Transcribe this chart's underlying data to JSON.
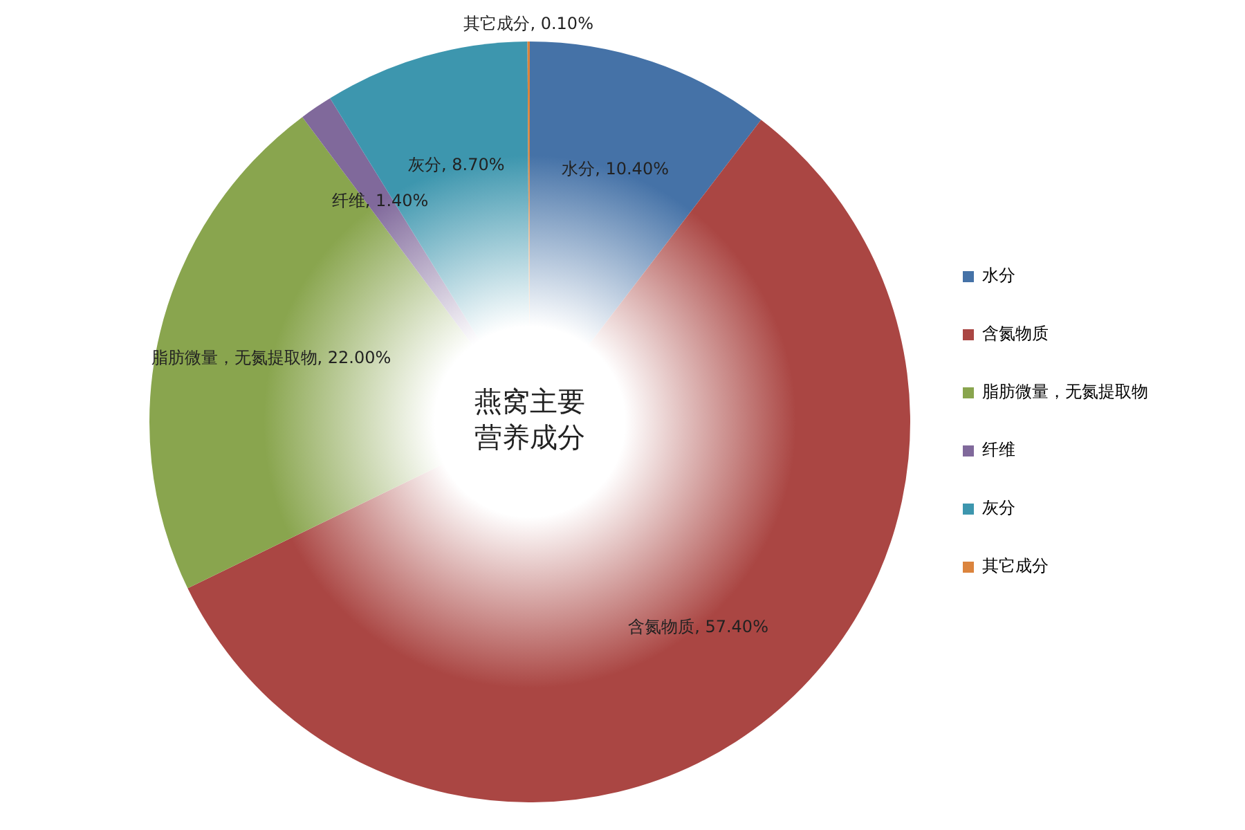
{
  "chart_data": {
    "type": "pie",
    "title": "燕窝主要营养成分",
    "categories": [
      "水分",
      "含氮物质",
      "脂肪微量，无氮提取物",
      "纤维",
      "灰分",
      "其它成分"
    ],
    "values": [
      10.4,
      57.4,
      22.0,
      1.4,
      8.7,
      0.1
    ],
    "colors": [
      "#4572a7",
      "#aa4643",
      "#89a54e",
      "#80699b",
      "#3d96ae",
      "#db843d"
    ],
    "value_labels": [
      "水分, 10.40%",
      "含氮物质, 57.40%",
      "脂肪微量，无氮提取物, 22.00%",
      "纤维, 1.40%",
      "灰分, 8.70%",
      "其它成分, 0.10%"
    ],
    "legend": "right"
  }
}
